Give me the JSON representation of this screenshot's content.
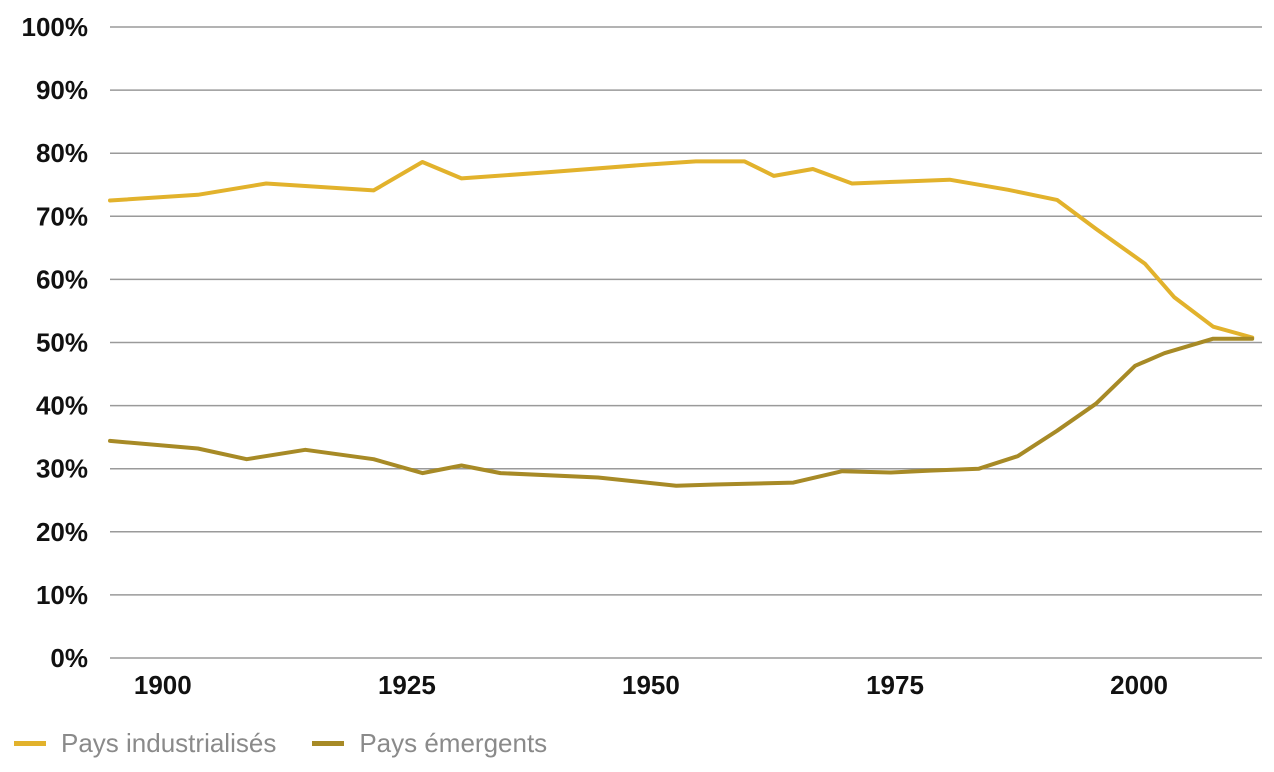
{
  "chart_data": {
    "type": "line",
    "title": "",
    "xlabel": "",
    "ylabel": "",
    "xlim": [
      1895,
      2013
    ],
    "ylim": [
      0,
      100
    ],
    "y_tick_values": [
      0,
      10,
      20,
      30,
      40,
      50,
      60,
      70,
      80,
      90,
      100
    ],
    "y_tick_labels": [
      "0%",
      "10%",
      "20%",
      "30%",
      "40%",
      "50%",
      "60%",
      "70%",
      "80%",
      "90%",
      "100%"
    ],
    "x_tick_values": [
      1900,
      1925,
      1950,
      1975,
      2000
    ],
    "x_tick_labels": [
      "1900",
      "1925",
      "1950",
      "1975",
      "2000"
    ],
    "grid": "horizontal",
    "legend_position": "bottom-left",
    "series": [
      {
        "name": "Pays industrialisés",
        "color": "#e2b22c",
        "x": [
          1895,
          1904,
          1911,
          1916,
          1922,
          1927,
          1931,
          1940,
          1950,
          1955,
          1960,
          1963,
          1967,
          1971,
          1976,
          1981,
          1987,
          1992,
          1996,
          2001,
          2004,
          2008,
          2012
        ],
        "y": [
          72.5,
          73.4,
          75.2,
          74.7,
          74.1,
          78.6,
          76.0,
          77.0,
          78.2,
          78.7,
          78.7,
          76.4,
          77.5,
          75.2,
          75.5,
          75.8,
          74.2,
          72.6,
          68.0,
          62.5,
          57.2,
          52.5,
          50.8
        ]
      },
      {
        "name": "Pays émergents",
        "color": "#a78a26",
        "x": [
          1895,
          1904,
          1909,
          1915,
          1922,
          1927,
          1931,
          1935,
          1945,
          1953,
          1957,
          1965,
          1970,
          1975,
          1979,
          1984,
          1988,
          1992,
          1996,
          2000,
          2003,
          2008,
          2012
        ],
        "y": [
          34.4,
          33.2,
          31.5,
          33.0,
          31.5,
          29.3,
          30.5,
          29.3,
          28.6,
          27.3,
          27.5,
          27.8,
          29.6,
          29.4,
          29.7,
          30.0,
          32.0,
          36.0,
          40.3,
          46.3,
          48.3,
          50.6,
          50.6
        ]
      }
    ]
  }
}
